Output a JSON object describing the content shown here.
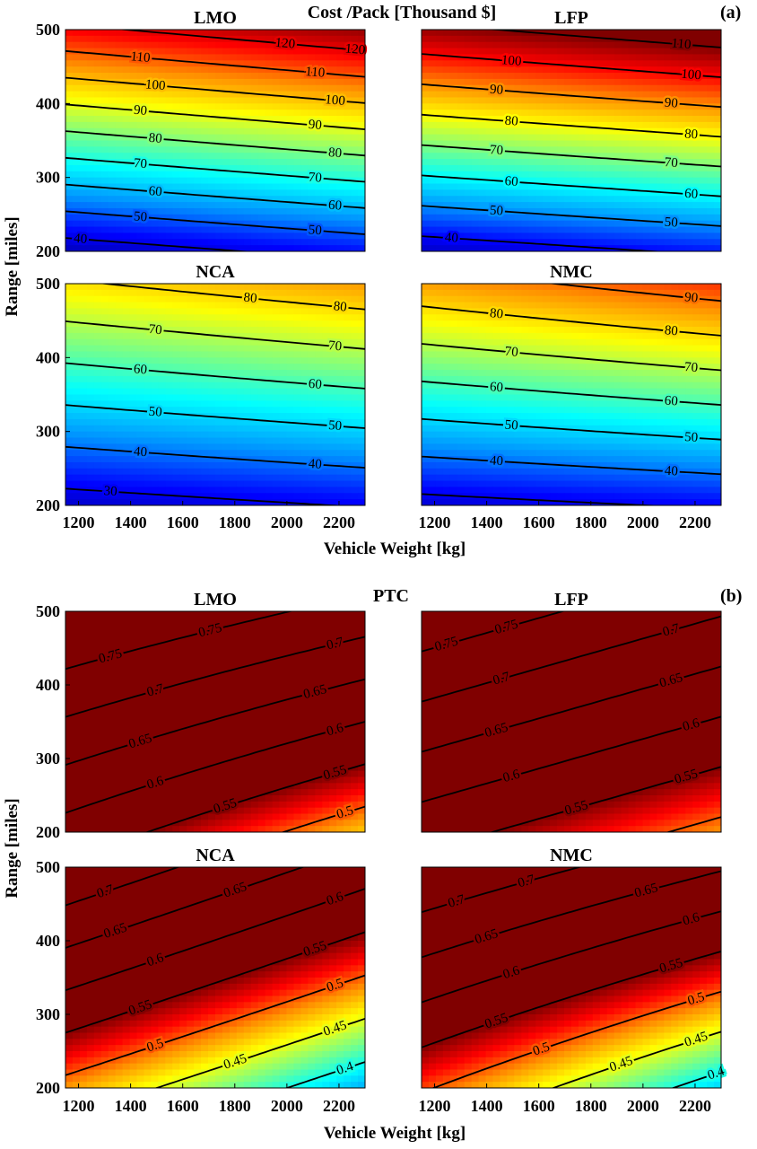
{
  "chart_data": [
    {
      "panel": "(a)",
      "type": "contour",
      "figure_title": "Cost /Pack [Thousand $]",
      "xlabel": "Vehicle Weight [kg]",
      "ylabel": "Range [miles]",
      "xlim": [
        1150,
        2300
      ],
      "ylim": [
        200,
        500
      ],
      "xticks": [
        "1200",
        "1400",
        "1600",
        "1800",
        "2000",
        "2200"
      ],
      "yticks": [
        "200",
        "300",
        "400",
        "500"
      ],
      "colormap": [
        "#00008f",
        "#0000ff",
        "#0090ff",
        "#00ffff",
        "#80ff80",
        "#ffff00",
        "#ff9000",
        "#ff0000",
        "#800000"
      ],
      "subplots": [
        {
          "title": "LMO",
          "z_range": [
            30,
            130
          ],
          "f": [
            [
              35,
              43.5
            ],
            [
              118,
              128
            ]
          ],
          "levels": [
            40,
            50,
            60,
            70,
            80,
            90,
            100,
            110,
            120
          ]
        },
        {
          "title": "LFP",
          "z_range": [
            30,
            110
          ],
          "f": [
            [
              35,
              41.5
            ],
            [
              108,
              116
            ]
          ],
          "levels": [
            40,
            50,
            60,
            70,
            80,
            90,
            100,
            110
          ]
        },
        {
          "title": "NCA",
          "z_range": [
            20,
            110
          ],
          "f": [
            [
              26,
              30.5
            ],
            [
              79,
              86.5
            ]
          ],
          "levels": [
            30,
            40,
            50,
            60,
            70,
            80
          ]
        },
        {
          "title": "NMC",
          "z_range": [
            20,
            110
          ],
          "f": [
            [
              27,
              31
            ],
            [
              86,
              95
            ]
          ],
          "levels": [
            30,
            40,
            50,
            60,
            70,
            80,
            90
          ]
        }
      ]
    },
    {
      "panel": "(b)",
      "type": "contour",
      "figure_title": "PTC",
      "xlabel": "Vehicle Weight [kg]",
      "ylabel": "Range [miles]",
      "xlim": [
        1150,
        2300
      ],
      "ylim": [
        200,
        500
      ],
      "xticks": [
        "1200",
        "1400",
        "1600",
        "1800",
        "2000",
        "2200"
      ],
      "yticks": [
        "200",
        "300",
        "400",
        "500"
      ],
      "colormap": [
        "#00008f",
        "#0000ff",
        "#0090ff",
        "#00ffff",
        "#80ff80",
        "#ffff00",
        "#ff9000",
        "#ff0000",
        "#800000"
      ],
      "subplots": [
        {
          "title": "LMO",
          "z_range": [
            0.3,
            0.55
          ],
          "f": [
            [
              0.58,
              0.47
            ],
            [
              0.81,
              0.73
            ]
          ],
          "levels": [
            0.5,
            0.55,
            0.6,
            0.65,
            0.7,
            0.75
          ]
        },
        {
          "title": "LFP",
          "z_range": [
            0.3,
            0.55
          ],
          "f": [
            [
              0.57,
              0.485
            ],
            [
              0.79,
              0.705
            ]
          ],
          "levels": [
            0.5,
            0.55,
            0.6,
            0.65,
            0.7,
            0.75
          ]
        },
        {
          "title": "NCA",
          "z_range": [
            0.3,
            0.55
          ],
          "f": [
            [
              0.485,
              0.37
            ],
            [
              0.745,
              0.625
            ]
          ],
          "levels": [
            0.4,
            0.45,
            0.5,
            0.55,
            0.6,
            0.65,
            0.7
          ]
        },
        {
          "title": "NMC",
          "z_range": [
            0.3,
            0.55
          ],
          "f": [
            [
              0.505,
              0.38
            ],
            [
              0.75,
              0.655
            ]
          ],
          "levels": [
            0.4,
            0.45,
            0.5,
            0.55,
            0.6,
            0.65,
            0.7
          ]
        }
      ]
    }
  ],
  "panel_labels": {
    "a": "(a)",
    "b": "(b)"
  }
}
